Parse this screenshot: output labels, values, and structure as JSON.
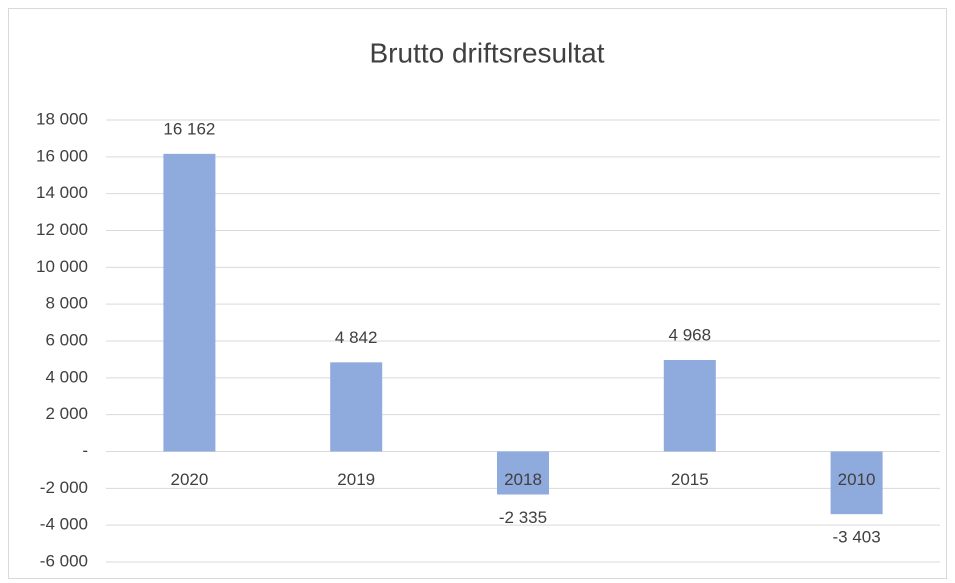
{
  "chart_data": {
    "type": "bar",
    "title": "Brutto driftsresultat",
    "categories": [
      "2020",
      "2019",
      "2018",
      "2015",
      "2010"
    ],
    "values": [
      16162,
      4842,
      -2335,
      4968,
      -3403
    ],
    "value_labels": [
      "16 162",
      "4 842",
      "-2 335",
      "4 968",
      "-3 403"
    ],
    "color": "#8faadc",
    "ylim": [
      -6000,
      18000
    ],
    "yticks": [
      {
        "value": 18000,
        "label": "18 000"
      },
      {
        "value": 16000,
        "label": "16 000"
      },
      {
        "value": 14000,
        "label": "14 000"
      },
      {
        "value": 12000,
        "label": "12 000"
      },
      {
        "value": 10000,
        "label": "10 000"
      },
      {
        "value": 8000,
        "label": "8 000"
      },
      {
        "value": 6000,
        "label": "6 000"
      },
      {
        "value": 4000,
        "label": "4 000"
      },
      {
        "value": 2000,
        "label": "2 000"
      },
      {
        "value": 0,
        "label": "-"
      },
      {
        "value": -2000,
        "label": "-2 000"
      },
      {
        "value": -4000,
        "label": "-4 000"
      },
      {
        "value": -6000,
        "label": "-6 000"
      }
    ],
    "grid": true
  }
}
